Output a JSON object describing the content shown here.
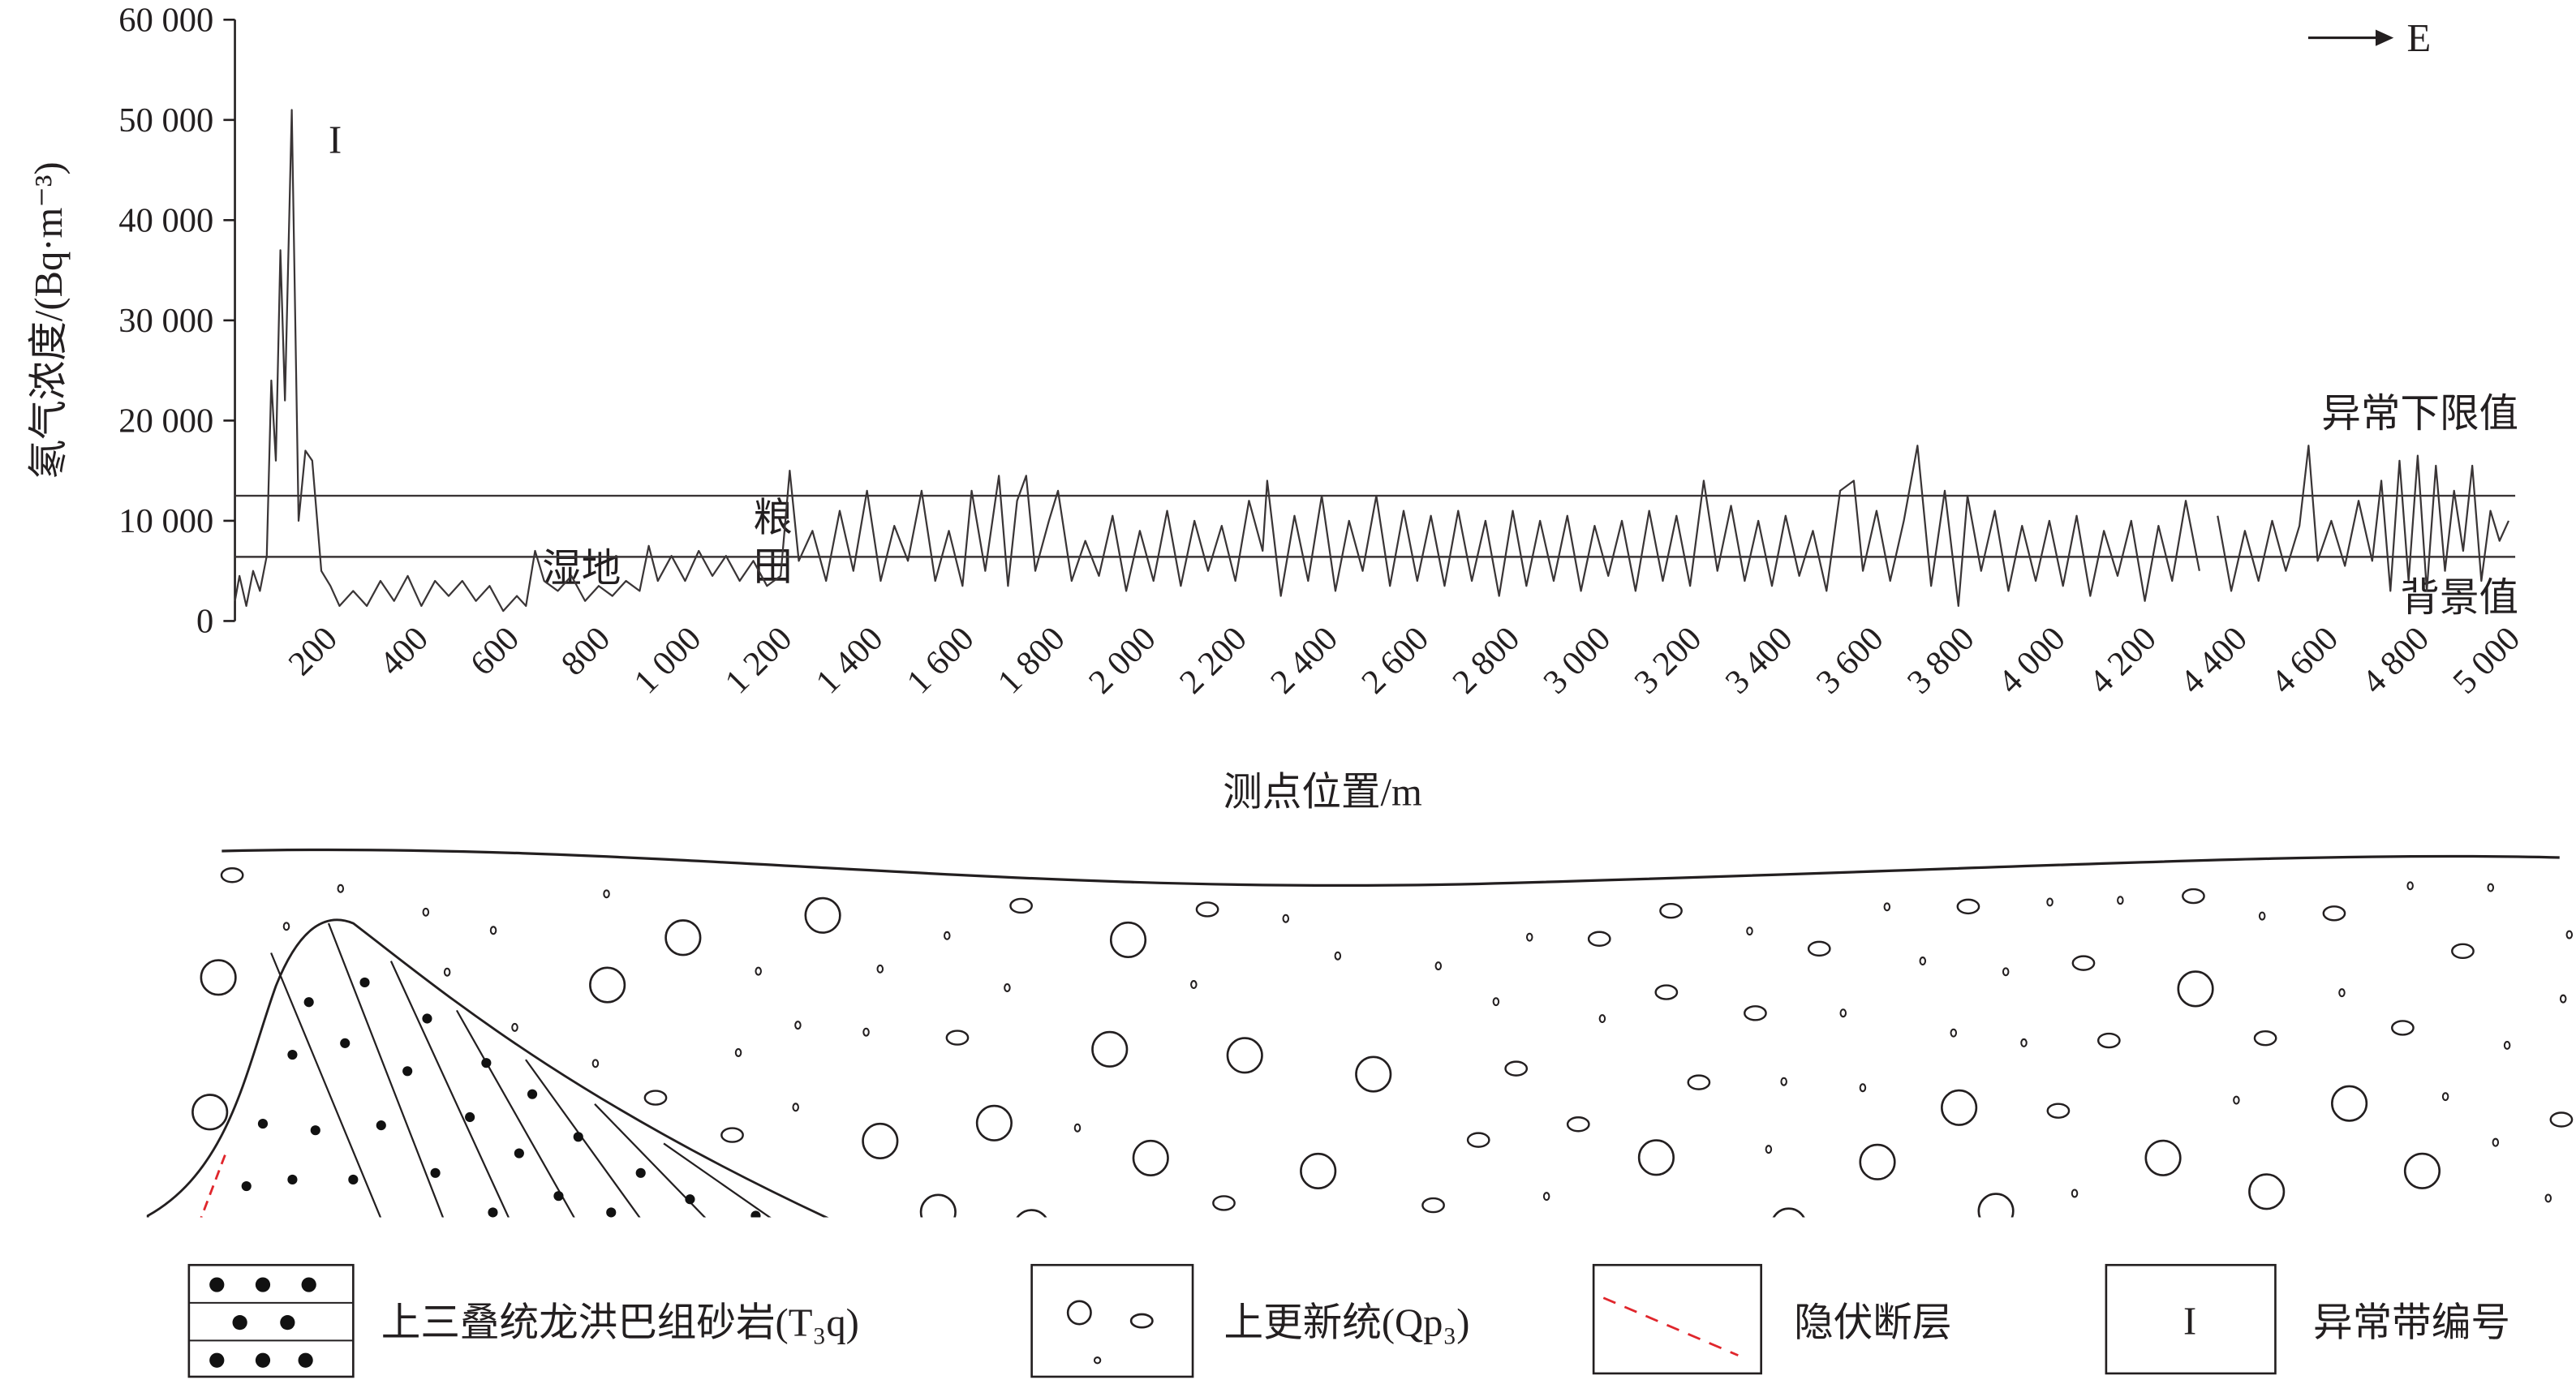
{
  "chart_data": {
    "type": "line",
    "y_label": "氡气浓度/(Bq·m⁻³)",
    "x_label": "测点位置/m",
    "direction_label": "E",
    "xlim": [
      0,
      5000
    ],
    "ylim": [
      0,
      60000
    ],
    "yticks": [
      0,
      {
        "value": 10000,
        "label": "10 000"
      },
      {
        "value": 20000,
        "label": "20 000"
      },
      {
        "value": 30000,
        "label": "30 000"
      },
      {
        "value": 40000,
        "label": "40 000"
      },
      {
        "value": 50000,
        "label": "50 000"
      },
      {
        "value": 60000,
        "label": "60 000"
      }
    ],
    "xticks": [
      200,
      400,
      600,
      800,
      {
        "value": 1000,
        "label": "1 000"
      },
      {
        "value": 1200,
        "label": "1 200"
      },
      {
        "value": 1400,
        "label": "1 400"
      },
      {
        "value": 1600,
        "label": "1 600"
      },
      {
        "value": 1800,
        "label": "1 800"
      },
      {
        "value": 2000,
        "label": "2 000"
      },
      {
        "value": 2200,
        "label": "2 200"
      },
      {
        "value": 2400,
        "label": "2 400"
      },
      {
        "value": 2600,
        "label": "2 600"
      },
      {
        "value": 2800,
        "label": "2 800"
      },
      {
        "value": 3000,
        "label": "3 000"
      },
      {
        "value": 3200,
        "label": "3 200"
      },
      {
        "value": 3400,
        "label": "3 400"
      },
      {
        "value": 3600,
        "label": "3 600"
      },
      {
        "value": 3800,
        "label": "3 800"
      },
      {
        "value": 4000,
        "label": "4 000"
      },
      {
        "value": 4200,
        "label": "4 200"
      },
      {
        "value": 4400,
        "label": "4 400"
      },
      {
        "value": 4600,
        "label": "4 600"
      },
      {
        "value": 4800,
        "label": "4 800"
      },
      {
        "value": 5000,
        "label": "5 000"
      }
    ],
    "threshold_lines": [
      {
        "label": "异常下限值",
        "value": 12500
      },
      {
        "label": "背景值",
        "value": 6400
      }
    ],
    "annotations": {
      "zone": "I",
      "wetland": "湿地",
      "farmland": "粮田"
    },
    "series": [
      {
        "color": "#3a3536",
        "x": [
          0,
          10,
          25,
          40,
          55,
          70,
          80,
          90,
          100,
          110,
          125,
          140,
          155,
          170,
          190,
          210,
          230,
          260,
          290,
          320,
          350,
          380,
          410,
          440,
          470,
          500,
          530,
          560,
          590,
          620,
          640,
          660,
          680,
          710,
          740,
          770,
          800,
          830,
          860,
          890,
          910,
          930,
          960,
          990,
          1020,
          1050,
          1080,
          1110,
          1140,
          1170,
          1200,
          1220,
          1240,
          1270,
          1300,
          1330,
          1360,
          1390,
          1420,
          1450,
          1480,
          1510,
          1540,
          1570,
          1600,
          1620,
          1650,
          1680,
          1700,
          1720,
          1740,
          1760,
          1790,
          1810,
          1840,
          1870,
          1900,
          1930,
          1960,
          1990,
          2020,
          2050,
          2080,
          2110,
          2140,
          2170,
          2200,
          2230,
          2260,
          2270,
          2300,
          2330,
          2360,
          2390,
          2420,
          2450,
          2480,
          2510,
          2540,
          2570,
          2600,
          2630,
          2660,
          2690,
          2720,
          2750,
          2780,
          2810,
          2840,
          2870,
          2900,
          2930,
          2960,
          2990,
          3020,
          3050,
          3080,
          3110,
          3140,
          3170,
          3200,
          3230,
          3260,
          3290,
          3320,
          3350,
          3380,
          3410,
          3440,
          3470,
          3500,
          3530,
          3560,
          3580,
          3610,
          3640,
          3670,
          3700,
          3730,
          3760,
          3790,
          3810,
          3840,
          3870,
          3900,
          3930,
          3960,
          3990,
          4020,
          4050,
          4080,
          4110,
          4140,
          4170,
          4200,
          4230,
          4260,
          4290,
          4320,
          4340,
          4360,
          4390,
          4420,
          4450,
          4480,
          4510,
          4540,
          4560,
          4580,
          4610,
          4640,
          4670,
          4700,
          4720,
          4740,
          4760,
          4780,
          4800,
          4820,
          4840,
          4860,
          4880,
          4900,
          4920,
          4940,
          4960,
          4980,
          5000
        ],
        "values": [
          2000,
          4500,
          1500,
          5000,
          3000,
          6500,
          24000,
          16000,
          37000,
          22000,
          51000,
          10000,
          17000,
          16000,
          5000,
          3500,
          1500,
          3000,
          1500,
          4000,
          2000,
          4500,
          1500,
          4000,
          2500,
          4000,
          2000,
          3500,
          1000,
          2500,
          1500,
          7000,
          4000,
          3000,
          4500,
          2000,
          3500,
          2500,
          4000,
          3000,
          7500,
          4000,
          6500,
          4000,
          7000,
          4500,
          6500,
          4000,
          6000,
          3500,
          4500,
          15000,
          6000,
          9000,
          4000,
          11000,
          5000,
          13000,
          4000,
          9500,
          6000,
          13000,
          4000,
          9000,
          3500,
          13000,
          5000,
          14500,
          3500,
          12000,
          14500,
          5000,
          10000,
          13000,
          4000,
          8000,
          4500,
          10500,
          3000,
          9000,
          4000,
          11000,
          3500,
          10000,
          5000,
          9500,
          4000,
          12000,
          7000,
          14000,
          2500,
          10500,
          4000,
          12500,
          3000,
          10000,
          5000,
          12500,
          3500,
          11000,
          4000,
          10500,
          3500,
          11000,
          4000,
          10000,
          2500,
          11000,
          3500,
          10000,
          4000,
          10500,
          3000,
          9500,
          4500,
          10000,
          3000,
          11000,
          4000,
          10500,
          3500,
          14000,
          5000,
          11500,
          4000,
          10000,
          3500,
          10500,
          4500,
          9000,
          3000,
          13000,
          14000,
          5000,
          11000,
          4000,
          10000,
          17500,
          3500,
          13000,
          1500,
          12500,
          5000,
          11000,
          3000,
          9500,
          4000,
          10000,
          3500,
          10500,
          2500,
          9000,
          4500,
          10000,
          2000,
          9500,
          4000,
          12000,
          5000,
          null,
          10500,
          3000,
          9000,
          4000,
          10000,
          5000,
          9500,
          17500,
          6000,
          10000,
          5500,
          12000,
          6000,
          14000,
          3000,
          16000,
          4000,
          16500,
          3000,
          15500,
          5000,
          13000,
          7000,
          15500,
          4000,
          11000,
          8000,
          10000
        ]
      }
    ]
  },
  "section_legend": [
    {
      "label": "上三叠统龙洪巴组砂岩(T₃q)"
    },
    {
      "label": "上更新统(Qp₃)"
    },
    {
      "label": "隐伏断层"
    },
    {
      "label": "异常带编号",
      "symbol": "I"
    }
  ]
}
